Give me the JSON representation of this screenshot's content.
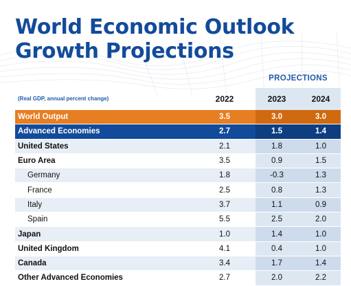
{
  "title_line1": "World Economic Outlook",
  "title_line2": "Growth Projections",
  "projections_label": "PROJECTIONS",
  "unit_note": "(Real GDP, annual percent change)",
  "years": [
    "2022",
    "2023",
    "2024"
  ],
  "colors": {
    "title": "#134b9b",
    "world_row": "#e67e22",
    "advanced_row": "#134b9b",
    "projection_band": "#dde7f2"
  },
  "rows": [
    {
      "name": "World Output",
      "v": [
        "3.5",
        "3.0",
        "3.0"
      ]
    },
    {
      "name": "Advanced Economies",
      "v": [
        "2.7",
        "1.5",
        "1.4"
      ]
    },
    {
      "name": "United States",
      "v": [
        "2.1",
        "1.8",
        "1.0"
      ]
    },
    {
      "name": "Euro Area",
      "v": [
        "3.5",
        "0.9",
        "1.5"
      ]
    },
    {
      "name": "Germany",
      "v": [
        "1.8",
        "-0.3",
        "1.3"
      ]
    },
    {
      "name": "France",
      "v": [
        "2.5",
        "0.8",
        "1.3"
      ]
    },
    {
      "name": "Italy",
      "v": [
        "3.7",
        "1.1",
        "0.9"
      ]
    },
    {
      "name": "Spain",
      "v": [
        "5.5",
        "2.5",
        "2.0"
      ]
    },
    {
      "name": "Japan",
      "v": [
        "1.0",
        "1.4",
        "1.0"
      ]
    },
    {
      "name": "United Kingdom",
      "v": [
        "4.1",
        "0.4",
        "1.0"
      ]
    },
    {
      "name": "Canada",
      "v": [
        "3.4",
        "1.7",
        "1.4"
      ]
    },
    {
      "name": "Other Advanced Economies",
      "v": [
        "2.7",
        "2.0",
        "2.2"
      ]
    }
  ]
}
